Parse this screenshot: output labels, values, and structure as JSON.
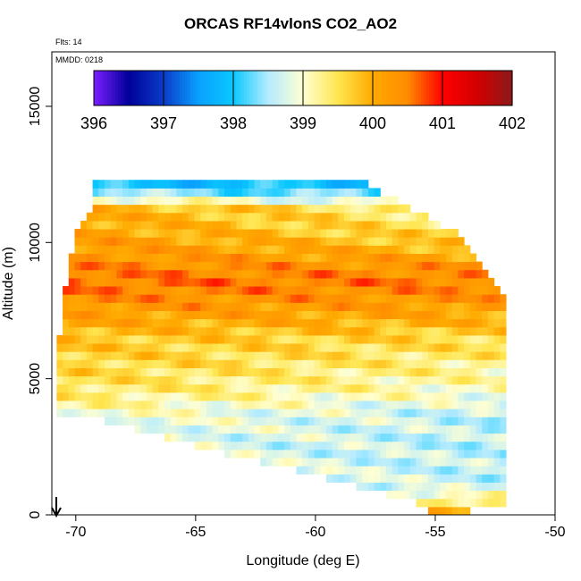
{
  "header": {
    "title": "ORCAS RF14vlonS CO2_AO2",
    "flts_note": "Flts: 14",
    "mmdd_note": "MMDD: 0218"
  },
  "chart_data": {
    "type": "heatmap",
    "title": "ORCAS RF14vlonS CO2_AO2",
    "xlabel": "Longitude (deg E)",
    "ylabel": "Altitude (m)",
    "xlim": [
      -71.0,
      -50.0
    ],
    "ylim": [
      0,
      17000
    ],
    "x_ticks": [
      -70,
      -65,
      -60,
      -55,
      -50
    ],
    "x_tick_labels": [
      "-70",
      "-65",
      "-60",
      "-55",
      "-50"
    ],
    "y_ticks": [
      0,
      5000,
      10000,
      15000
    ],
    "y_tick_labels": [
      "0",
      "5000",
      "10000",
      "15000"
    ],
    "colorbar": {
      "min": 396,
      "max": 402,
      "ticks": [
        396,
        397,
        398,
        399,
        400,
        401,
        402
      ],
      "tick_labels": [
        "396",
        "397",
        "398",
        "399",
        "400",
        "401",
        "402"
      ],
      "colors": [
        "#7b1fff",
        "#00009a",
        "#0a3cc8",
        "#0aa0ff",
        "#0ac8ff",
        "#b4ebff",
        "#ffffd2",
        "#ffe650",
        "#ffaa00",
        "#ff8c00",
        "#ff0000",
        "#d20000",
        "#8c1a1a"
      ]
    },
    "x_grid_step": 0.25,
    "y_grid_step": 300,
    "domain": {
      "top": [
        [
          -67.8,
          12150
        ],
        [
          -57.8,
          12150
        ]
      ],
      "left": [
        [
          -69.3,
          12050
        ],
        [
          -69.3,
          11300
        ],
        [
          -69.9,
          10500
        ],
        [
          -70.2,
          9500
        ],
        [
          -70.5,
          8000
        ],
        [
          -70.7,
          6500
        ],
        [
          -70.8,
          5000
        ],
        [
          -70.8,
          3700
        ]
      ],
      "right": [
        [
          -57.8,
          12150
        ],
        [
          -56.5,
          11500
        ],
        [
          -54.0,
          10300
        ],
        [
          -53.0,
          9000
        ],
        [
          -52.0,
          8000
        ],
        [
          -51.6,
          7200
        ],
        [
          -51.8,
          6000
        ],
        [
          -51.9,
          4000
        ],
        [
          -51.9,
          1800
        ],
        [
          -52.0,
          400
        ]
      ],
      "bottom": [
        [
          -70.8,
          3700
        ],
        [
          -69.5,
          3600
        ],
        [
          -67.0,
          3000
        ],
        [
          -64.0,
          2300
        ],
        [
          -61.0,
          1700
        ],
        [
          -58.0,
          1000
        ],
        [
          -56.0,
          500
        ],
        [
          -55.0,
          50
        ],
        [
          -53.0,
          200
        ],
        [
          -52.0,
          400
        ]
      ]
    },
    "field": {
      "base": [
        [
          0,
          400.35
        ],
        [
          1000,
          398.95
        ],
        [
          2500,
          398.85
        ],
        [
          3700,
          399.05
        ],
        [
          4500,
          399.45
        ],
        [
          5500,
          399.65
        ],
        [
          6500,
          399.8
        ],
        [
          7500,
          400.25
        ],
        [
          8500,
          400.6
        ],
        [
          9500,
          400.35
        ],
        [
          10500,
          400.15
        ],
        [
          11300,
          400.05
        ],
        [
          11700,
          398.7
        ],
        [
          12150,
          397.9
        ]
      ],
      "east_gradient": [
        [
          0,
          -0.3
        ],
        [
          2500,
          -0.3
        ],
        [
          4000,
          -0.5
        ],
        [
          5500,
          -0.4
        ],
        [
          7000,
          -0.15
        ],
        [
          9000,
          -0.1
        ],
        [
          10500,
          -0.8
        ],
        [
          11300,
          -0.9
        ],
        [
          12150,
          0.0
        ]
      ]
    }
  }
}
